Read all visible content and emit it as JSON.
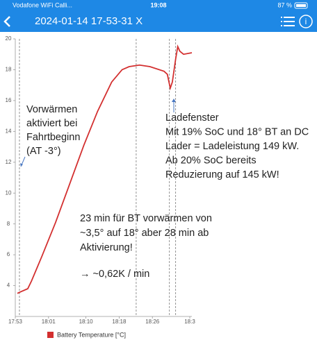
{
  "status_bar": {
    "carrier": "Vodafone WiFi Calli...",
    "time": "19:08",
    "battery": "87 %"
  },
  "nav_bar": {
    "title": "2024-01-14 17-53-31 X"
  },
  "chart_data": {
    "type": "line",
    "x": [
      1073.5,
      1074.3,
      1076.0,
      1076.9,
      1079.4,
      1082.7,
      1086.1,
      1089.5,
      1092.8,
      1096.2,
      1098.7,
      1100.4,
      1102.9,
      1105.4,
      1108.8,
      1109.6,
      1110.3,
      1110.8,
      1111.6,
      1112.1,
      1112.6,
      1113.5,
      1115.5
    ],
    "series": [
      {
        "name": "Battery Temperature [°C]",
        "color": "#d32f2f",
        "values": [
          3.5,
          3.6,
          3.8,
          4.3,
          5.9,
          8.1,
          10.6,
          13.1,
          15.3,
          17.2,
          18.0,
          18.2,
          18.3,
          18.2,
          17.9,
          17.7,
          16.8,
          17.2,
          18.7,
          19.5,
          19.2,
          19.0,
          19.1
        ]
      }
    ],
    "xlim": [
      1073,
      1115.5
    ],
    "xticks": [
      {
        "value": 1073,
        "label": "17:53"
      },
      {
        "value": 1081,
        "label": "18:01"
      },
      {
        "value": 1090,
        "label": "18:10"
      },
      {
        "value": 1098,
        "label": "18:18"
      },
      {
        "value": 1106,
        "label": "18:26"
      },
      {
        "value": 1115,
        "label": "18:3"
      }
    ],
    "ylim": [
      2,
      20
    ],
    "yticks": [
      4,
      6,
      8,
      10,
      12,
      14,
      16,
      18,
      20
    ],
    "vlines": [
      1074.0,
      1102.1,
      1110.1,
      1111.6
    ],
    "annotations": [
      {
        "lines": [
          "Vorwärmen",
          "aktiviert bei",
          "Fahrtbeginn",
          "(AT -3°)"
        ]
      },
      {
        "lines": [
          "Ladefenster",
          "Mit 19% SoC und 18° BT an DC",
          "Lader = Ladeleistung 149 kW.",
          "Ab 20% SoC bereits",
          "Reduzierung auf 145 kW!"
        ]
      },
      {
        "lines": [
          "23 min für BT vorwärmen von",
          "~3,5° auf 18° aber 28 min ab",
          "Aktivierung!",
          "→ ~0,62K / min"
        ]
      }
    ]
  }
}
